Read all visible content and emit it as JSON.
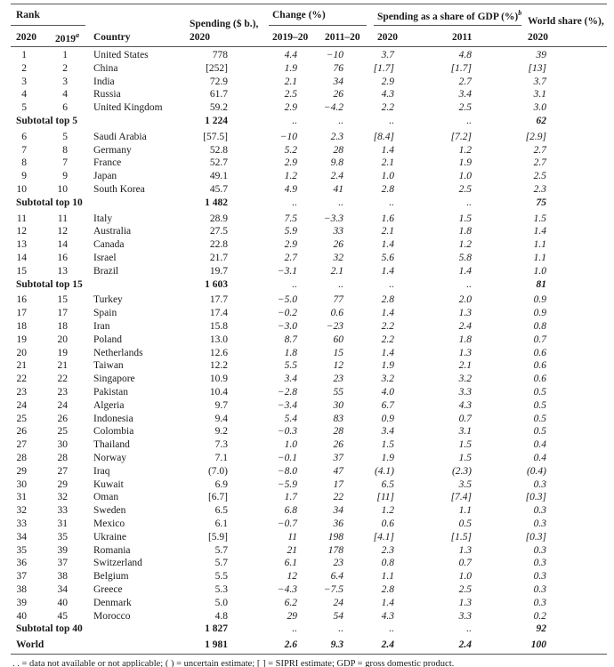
{
  "header": {
    "rank": "Rank",
    "rank_2020": "2020",
    "rank_2019": "2019",
    "rank_2019_note": "a",
    "country": "Country",
    "spending": "Spending ($ b.),",
    "spending_year": "2020",
    "change": "Change (%)",
    "change_1": "2019–20",
    "change_2": "2011–20",
    "gdp": "Spending as a share of GDP (%)",
    "gdp_note": "b",
    "gdp_1": "2020",
    "gdp_2": "2011",
    "world": "World share (%),",
    "world_year": "2020"
  },
  "table": {
    "rows": [
      [
        "1",
        "1",
        "United States",
        "778",
        "4.4",
        "−10",
        "3.7",
        "4.8",
        "39"
      ],
      [
        "2",
        "2",
        "China",
        "[252]",
        "1.9",
        "76",
        "[1.7]",
        "[1.7]",
        "[13]"
      ],
      [
        "3",
        "3",
        "India",
        "72.9",
        "2.1",
        "34",
        "2.9",
        "2.7",
        "3.7"
      ],
      [
        "4",
        "4",
        "Russia",
        "61.7",
        "2.5",
        "26",
        "4.3",
        "3.4",
        "3.1"
      ],
      [
        "5",
        "6",
        "United Kingdom",
        "59.2",
        "2.9",
        "−4.2",
        "2.2",
        "2.5",
        "3.0"
      ],
      {
        "label": "Subtotal top 5",
        "values": [
          "1 224",
          "..",
          "..",
          "..",
          "..",
          "62"
        ]
      },
      [
        "6",
        "5",
        "Saudi Arabia",
        "[57.5]",
        "−10",
        "2.3",
        "[8.4]",
        "[7.2]",
        "[2.9]"
      ],
      [
        "7",
        "8",
        "Germany",
        "52.8",
        "5.2",
        "28",
        "1.4",
        "1.2",
        "2.7"
      ],
      [
        "8",
        "7",
        "France",
        "52.7",
        "2.9",
        "9.8",
        "2.1",
        "1.9",
        "2.7"
      ],
      [
        "9",
        "9",
        "Japan",
        "49.1",
        "1.2",
        "2.4",
        "1.0",
        "1.0",
        "2.5"
      ],
      [
        "10",
        "10",
        "South Korea",
        "45.7",
        "4.9",
        "41",
        "2.8",
        "2.5",
        "2.3"
      ],
      {
        "label": "Subtotal top 10",
        "values": [
          "1 482",
          "..",
          "..",
          "..",
          "..",
          "75"
        ]
      },
      [
        "11",
        "11",
        "Italy",
        "28.9",
        "7.5",
        "−3.3",
        "1.6",
        "1.5",
        "1.5"
      ],
      [
        "12",
        "12",
        "Australia",
        "27.5",
        "5.9",
        "33",
        "2.1",
        "1.8",
        "1.4"
      ],
      [
        "13",
        "14",
        "Canada",
        "22.8",
        "2.9",
        "26",
        "1.4",
        "1.2",
        "1.1"
      ],
      [
        "14",
        "16",
        "Israel",
        "21.7",
        "2.7",
        "32",
        "5.6",
        "5.8",
        "1.1"
      ],
      [
        "15",
        "13",
        "Brazil",
        "19.7",
        "−3.1",
        "2.1",
        "1.4",
        "1.4",
        "1.0"
      ],
      {
        "label": "Subtotal top 15",
        "values": [
          "1 603",
          "..",
          "..",
          "..",
          "..",
          "81"
        ]
      },
      [
        "16",
        "15",
        "Turkey",
        "17.7",
        "−5.0",
        "77",
        "2.8",
        "2.0",
        "0.9"
      ],
      [
        "17",
        "17",
        "Spain",
        "17.4",
        "−0.2",
        "0.6",
        "1.4",
        "1.3",
        "0.9"
      ],
      [
        "18",
        "18",
        "Iran",
        "15.8",
        "−3.0",
        "−23",
        "2.2",
        "2.4",
        "0.8"
      ],
      [
        "19",
        "20",
        "Poland",
        "13.0",
        "8.7",
        "60",
        "2.2",
        "1.8",
        "0.7"
      ],
      [
        "20",
        "19",
        "Netherlands",
        "12.6",
        "1.8",
        "15",
        "1.4",
        "1.3",
        "0.6"
      ],
      [
        "21",
        "21",
        "Taiwan",
        "12.2",
        "5.5",
        "12",
        "1.9",
        "2.1",
        "0.6"
      ],
      [
        "22",
        "22",
        "Singapore",
        "10.9",
        "3.4",
        "23",
        "3.2",
        "3.2",
        "0.6"
      ],
      [
        "23",
        "23",
        "Pakistan",
        "10.4",
        "−2.8",
        "55",
        "4.0",
        "3.3",
        "0.5"
      ],
      [
        "24",
        "24",
        "Algeria",
        "9.7",
        "−3.4",
        "30",
        "6.7",
        "4.3",
        "0.5"
      ],
      [
        "25",
        "26",
        "Indonesia",
        "9.4",
        "5.4",
        "83",
        "0.9",
        "0.7",
        "0.5"
      ],
      [
        "26",
        "25",
        "Colombia",
        "9.2",
        "−0.3",
        "28",
        "3.4",
        "3.1",
        "0.5"
      ],
      [
        "27",
        "30",
        "Thailand",
        "7.3",
        "1.0",
        "26",
        "1.5",
        "1.5",
        "0.4"
      ],
      [
        "28",
        "28",
        "Norway",
        "7.1",
        "−0.1",
        "37",
        "1.9",
        "1.5",
        "0.4"
      ],
      [
        "29",
        "27",
        "Iraq",
        "(7.0)",
        "−8.0",
        "47",
        "(4.1)",
        "(2.3)",
        "(0.4)"
      ],
      [
        "30",
        "29",
        "Kuwait",
        "6.9",
        "−5.9",
        "17",
        "6.5",
        "3.5",
        "0.3"
      ],
      [
        "31",
        "32",
        "Oman",
        "[6.7]",
        "1.7",
        "22",
        "[11]",
        "[7.4]",
        "[0.3]"
      ],
      [
        "32",
        "33",
        "Sweden",
        "6.5",
        "6.8",
        "34",
        "1.2",
        "1.1",
        "0.3"
      ],
      [
        "33",
        "31",
        "Mexico",
        "6.1",
        "−0.7",
        "36",
        "0.6",
        "0.5",
        "0.3"
      ],
      [
        "34",
        "35",
        "Ukraine",
        "[5.9]",
        "11",
        "198",
        "[4.1]",
        "[1.5]",
        "[0.3]"
      ],
      [
        "35",
        "39",
        "Romania",
        "5.7",
        "21",
        "178",
        "2.3",
        "1.3",
        "0.3"
      ],
      [
        "36",
        "37",
        "Switzerland",
        "5.7",
        "6.1",
        "23",
        "0.8",
        "0.7",
        "0.3"
      ],
      [
        "37",
        "38",
        "Belgium",
        "5.5",
        "12",
        "6.4",
        "1.1",
        "1.0",
        "0.3"
      ],
      [
        "38",
        "34",
        "Greece",
        "5.3",
        "−4.3",
        "−7.5",
        "2.8",
        "2.5",
        "0.3"
      ],
      [
        "39",
        "40",
        "Denmark",
        "5.0",
        "6.2",
        "24",
        "1.4",
        "1.3",
        "0.3"
      ],
      [
        "40",
        "45",
        "Morocco",
        "4.8",
        "29",
        "54",
        "4.3",
        "3.3",
        "0.2"
      ],
      {
        "label": "Subtotal top 40",
        "values": [
          "1 827",
          "..",
          "..",
          "..",
          "..",
          "92"
        ]
      },
      {
        "label": "World",
        "values": [
          "1 981",
          "2.6",
          "9.3",
          "2.4",
          "2.4",
          "100"
        ]
      }
    ]
  },
  "footnote": ". . = data not available or not applicable; ( ) = uncertain estimate; [ ] = SIPRI estimate; GDP = gross domestic product."
}
